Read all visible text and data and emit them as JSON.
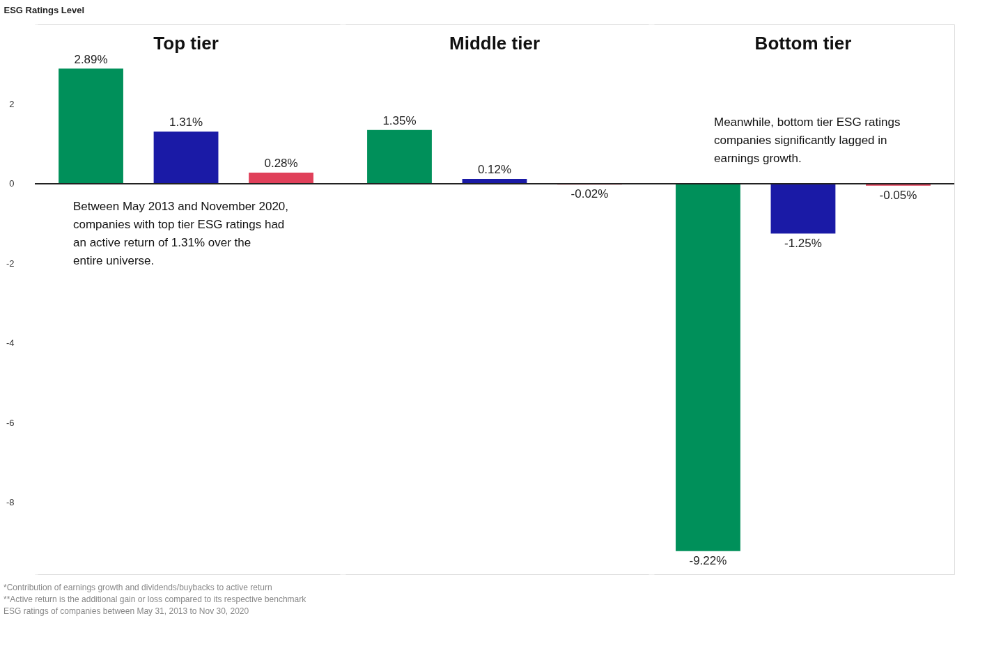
{
  "chart_data": {
    "type": "bar",
    "ylabel": "ESG Ratings Level",
    "categories": [
      "Top tier",
      "Middle tier",
      "Bottom tier"
    ],
    "series": [
      {
        "color": "#00905a",
        "values": [
          2.89,
          1.35,
          -9.22
        ],
        "value_labels": [
          "2.89%",
          "1.35%",
          "-9.22%"
        ]
      },
      {
        "color": "#1a1aa6",
        "values": [
          1.31,
          0.12,
          -1.25
        ],
        "value_labels": [
          "1.31%",
          "0.12%",
          "-1.25%"
        ]
      },
      {
        "color": "#e0405a",
        "values": [
          0.28,
          -0.02,
          -0.05
        ],
        "value_labels": [
          "0.28%",
          "-0.02%",
          "-0.05%"
        ]
      }
    ],
    "ylim": [
      -9.8,
      4
    ],
    "yticks": [
      2,
      0,
      -2,
      -4,
      -6,
      -8
    ],
    "annotations": [
      "Between May 2013 and November 2020, companies with top tier ESG ratings had an active return of 1.31% over the entire universe.",
      "Meanwhile, bottom tier ESG ratings companies significantly lagged in earnings growth.",
      "*Contribution of earnings growth and dividends/buybacks to active return",
      "**Active return is the additional gain or loss compared to its respective benchmark",
      "ESG ratings of companies between May 31, 2013 to Nov 30, 2020"
    ]
  }
}
